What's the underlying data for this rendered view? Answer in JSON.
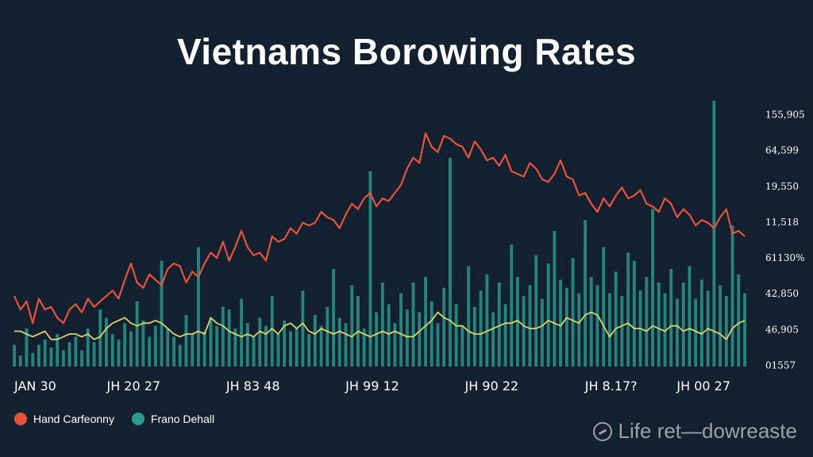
{
  "chart_data": {
    "type": "line",
    "title": "Vietnams Borowing Rates",
    "xlabel": "",
    "ylabel": "",
    "grid": false,
    "legend_position": "bottom-left",
    "y_tick_labels": [
      "155,905",
      "64,599",
      "19,550",
      "11,518",
      "61130%",
      "42,850",
      "46,905",
      "01557"
    ],
    "x_tick_labels": [
      "JAN 30",
      "JH 20 27",
      "JH 83 48",
      "JH 99 12",
      "JH 90 22",
      "JH 8.17?",
      "JH 00 27"
    ],
    "ylim": [
      0,
      100
    ],
    "x_count": 120,
    "series": [
      {
        "name": "Hand Carfeonny",
        "type": "line",
        "color": "#e8533b",
        "values": [
          26,
          21,
          24,
          16,
          25,
          21,
          22,
          18,
          16,
          21,
          23,
          20,
          25,
          22,
          24,
          26,
          28,
          25,
          32,
          38,
          31,
          29,
          34,
          32,
          30,
          36,
          38,
          37,
          31,
          35,
          33,
          38,
          42,
          40,
          46,
          39,
          44,
          50,
          44,
          41,
          42,
          39,
          48,
          46,
          47,
          51,
          49,
          53,
          52,
          53,
          57,
          55,
          54,
          51,
          56,
          60,
          58,
          62,
          64,
          59,
          62,
          61,
          64,
          67,
          73,
          77,
          75,
          86,
          81,
          79,
          85,
          84,
          82,
          81,
          77,
          83,
          80,
          76,
          77,
          74,
          78,
          72,
          71,
          70,
          75,
          73,
          69,
          68,
          71,
          76,
          70,
          69,
          63,
          64,
          60,
          57,
          62,
          59,
          63,
          66,
          62,
          63,
          65,
          60,
          59,
          57,
          62,
          60,
          55,
          58,
          56,
          52,
          54,
          53,
          51,
          55,
          58,
          49,
          50,
          48
        ]
      },
      {
        "name": "Frano Dehall",
        "type": "bar",
        "color": "#2a9d8f",
        "values": [
          8,
          4,
          14,
          5,
          8,
          10,
          7,
          12,
          6,
          9,
          11,
          6,
          14,
          9,
          21,
          18,
          12,
          10,
          16,
          13,
          24,
          17,
          11,
          15,
          39,
          14,
          11,
          8,
          19,
          12,
          44,
          13,
          18,
          15,
          22,
          21,
          14,
          25,
          16,
          11,
          18,
          15,
          26,
          12,
          17,
          13,
          14,
          28,
          12,
          19,
          15,
          22,
          36,
          18,
          16,
          30,
          26,
          14,
          72,
          20,
          31,
          23,
          16,
          27,
          21,
          31,
          20,
          33,
          24,
          16,
          29,
          77,
          23,
          15,
          37,
          22,
          28,
          34,
          20,
          31,
          23,
          45,
          33,
          26,
          30,
          41,
          25,
          38,
          50,
          32,
          29,
          40,
          27,
          54,
          33,
          30,
          44,
          27,
          35,
          26,
          42,
          39,
          28,
          33,
          58,
          31,
          27,
          36,
          25,
          31,
          37,
          25,
          32,
          28,
          98,
          30,
          26,
          52,
          34,
          27
        ]
      },
      {
        "name": "",
        "type": "line",
        "color": "#d8d36a",
        "values": [
          13,
          13,
          12,
          11,
          12,
          13,
          10,
          10,
          11,
          12,
          12,
          11,
          12,
          10,
          11,
          14,
          16,
          17,
          18,
          16,
          15,
          16,
          16,
          17,
          16,
          14,
          12,
          11,
          12,
          12,
          13,
          12,
          18,
          16,
          15,
          13,
          12,
          11,
          12,
          11,
          13,
          12,
          14,
          12,
          15,
          16,
          14,
          16,
          13,
          12,
          14,
          13,
          12,
          13,
          12,
          11,
          13,
          12,
          11,
          12,
          13,
          12,
          13,
          12,
          11,
          11,
          13,
          15,
          17,
          20,
          18,
          17,
          15,
          15,
          13,
          12,
          12,
          13,
          14,
          15,
          16,
          16,
          17,
          15,
          14,
          14,
          15,
          17,
          16,
          15,
          18,
          17,
          16,
          19,
          20,
          19,
          15,
          11,
          14,
          15,
          16,
          14,
          14,
          13,
          15,
          14,
          13,
          15,
          15,
          13,
          14,
          13,
          12,
          14,
          13,
          12,
          10,
          14,
          16,
          17
        ]
      }
    ]
  },
  "legend": {
    "items": [
      {
        "label": "Hand Carfeonny",
        "color": "#e8533b"
      },
      {
        "label": "Frano Dehall",
        "color": "#2a9d8f"
      }
    ]
  },
  "watermark": {
    "text": "Life ret—dowreaste"
  },
  "colors": {
    "background": "#13202f",
    "text": "#ffffff"
  }
}
